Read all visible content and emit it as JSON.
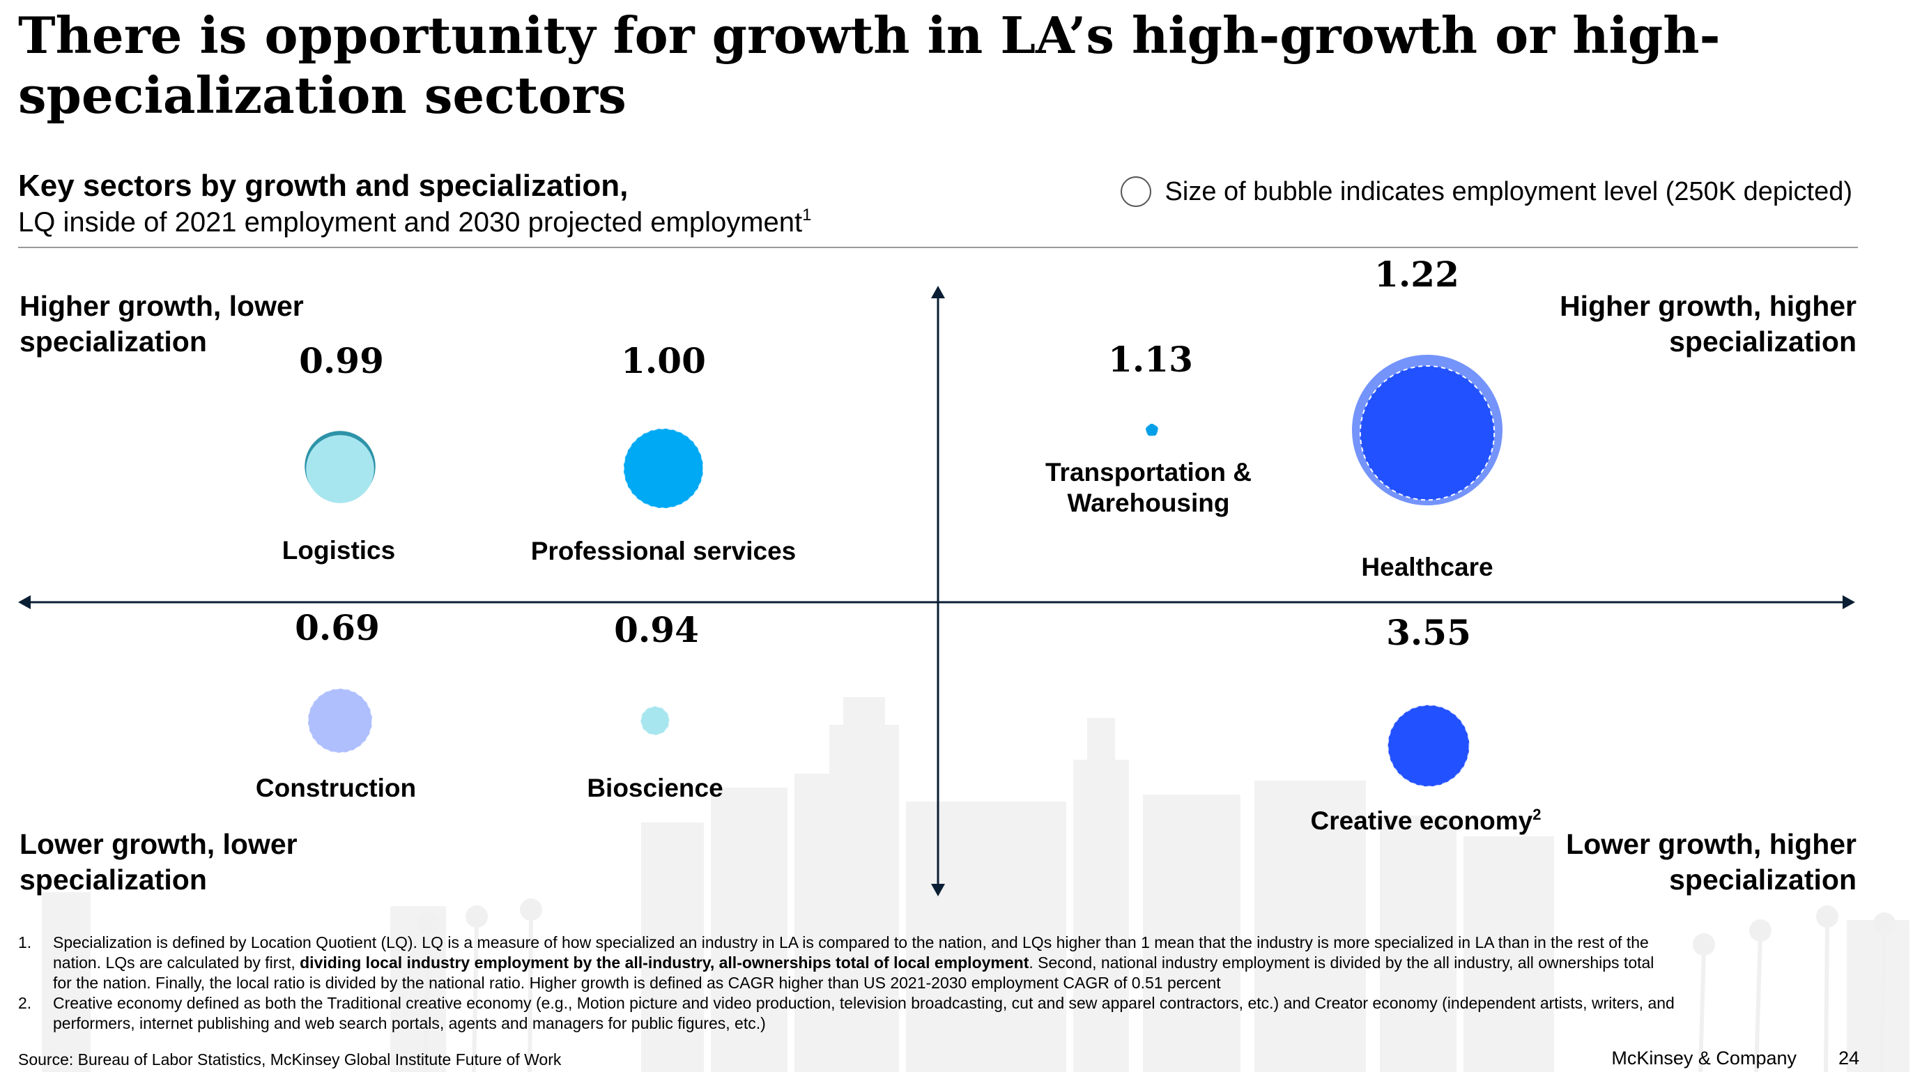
{
  "header": {
    "title": "There is opportunity for growth in LA’s high-growth or high-specialization sectors",
    "subtitle_bold": "Key sectors by growth and specialization,",
    "subtitle_regular": "LQ inside of 2021 employment and 2030 projected employment",
    "subtitle_footnote_mark": "1",
    "legend_note": "Size of bubble indicates employment level (250K depicted)"
  },
  "quadrants": {
    "top_left": "Higher growth, lower specialization",
    "top_right": "Higher growth, higher specialization",
    "bottom_left": "Lower growth, lower specialization",
    "bottom_right": "Lower growth, higher specialization"
  },
  "chart_data": {
    "type": "bubble-quadrant",
    "x_axis": "specialization (lower to higher)",
    "y_axis": "growth (lower to higher)",
    "series": [
      {
        "name": "Logistics",
        "lq": "0.99",
        "quadrant": "top-left",
        "employment_2021_k": 170,
        "employment_2030_k": 175,
        "color": "#A8E6EF",
        "ring_color": "#2E93A8"
      },
      {
        "name": "Professional services",
        "lq": "1.00",
        "quadrant": "top-left",
        "employment_2021_k": 215,
        "employment_2030_k": 220,
        "color": "#00A9F4",
        "ring_color": "#00A9F4"
      },
      {
        "name": "Transportation & Warehousing",
        "lq": "1.13",
        "quadrant": "top-right",
        "employment_2021_k": 5,
        "employment_2030_k": 5,
        "color": "#009FE8",
        "ring_color": "#009FE8"
      },
      {
        "name": "Healthcare",
        "lq": "1.22",
        "quadrant": "top-right",
        "employment_2021_k": 610,
        "employment_2030_k": 770,
        "color": "#2251FF",
        "ring_color": "#7494FB"
      },
      {
        "name": "Construction",
        "lq": "0.69",
        "quadrant": "bottom-left",
        "employment_2021_k": 140,
        "employment_2030_k": 140,
        "color": "#AFBFFD",
        "ring_color": "#AFBFFD"
      },
      {
        "name": "Bioscience",
        "lq": "0.94",
        "quadrant": "bottom-left",
        "employment_2021_k": 28,
        "employment_2030_k": 28,
        "color": "#A8E6EF",
        "ring_color": "#A8E6EF"
      },
      {
        "name": "Creative economy",
        "name_footnote_mark": "2",
        "lq": "3.55",
        "quadrant": "bottom-right",
        "employment_2021_k": 225,
        "employment_2030_k": 225,
        "color": "#2251FF",
        "ring_color": "#2251FF"
      }
    ]
  },
  "footnotes": [
    {
      "num": "1.",
      "pre": "Specialization is defined by Location Quotient (LQ). LQ is a measure of how specialized an industry in LA is compared to the nation, and LQs higher than 1 mean that the industry is more specialized in LA than in the rest of the nation. LQs are calculated by first, ",
      "bold": "dividing local industry employment by the all-industry, all-ownerships total of local employment",
      "post": ". Second, national industry employment is divided by the all industry, all ownerships total for the nation. Finally, the local ratio is divided by the national ratio. Higher growth is defined as CAGR higher than US 2021-2030 employment CAGR of 0.51 percent"
    },
    {
      "num": "2.",
      "text": "Creative economy defined as both the Traditional creative economy (e.g., Motion picture and video production, television broadcasting, cut and sew apparel contractors, etc.) and Creator economy (independent artists, writers, and performers, internet publishing and web search portals, agents and managers for public figures, etc.)"
    }
  ],
  "footer": {
    "source": "Source: Bureau of Labor Statistics, McKinsey Global Institute Future of Work",
    "brand": "McKinsey & Company",
    "page": "24"
  }
}
